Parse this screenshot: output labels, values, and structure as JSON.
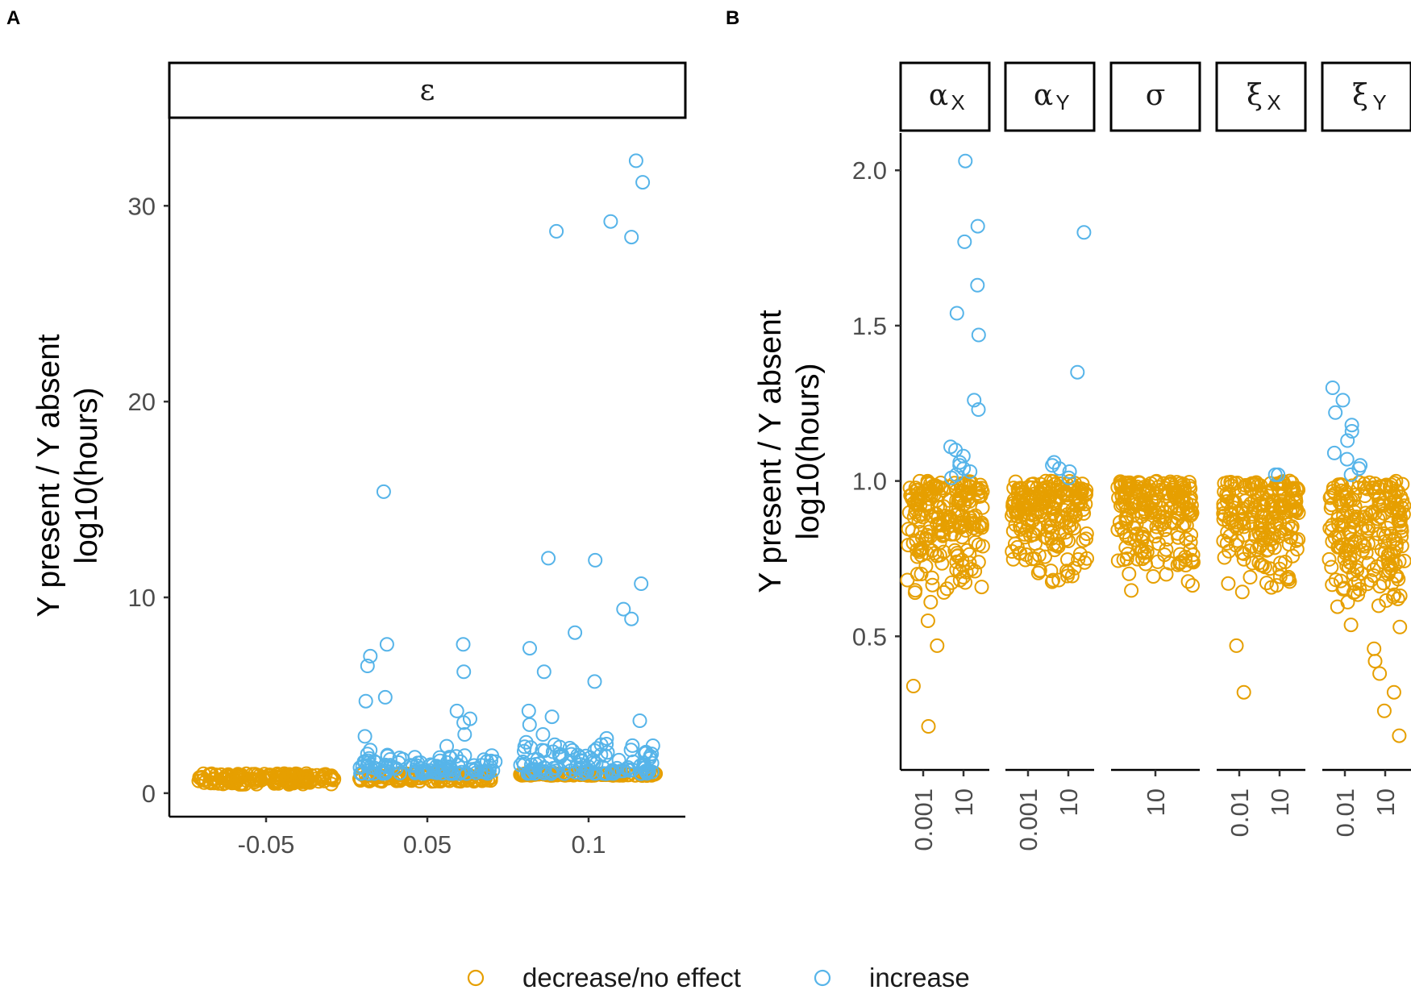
{
  "figure": {
    "panel_a_letter": "A",
    "panel_b_letter": "B"
  },
  "colors": {
    "decrease": "#E69F00",
    "increase": "#56B4E9"
  },
  "legend": {
    "decrease_label": "decrease/no effect",
    "increase_label": "increase"
  },
  "chart_data": [
    {
      "type": "scatter",
      "panel": "A",
      "facet": "ε",
      "ylabel_line1": "Y present / Y absent",
      "ylabel_line2": "log10(hours)",
      "xlabel": "",
      "ylim": [
        -1.2,
        34.5
      ],
      "yticks": [
        0,
        10,
        20,
        30
      ],
      "categories": [
        "-0.05",
        "0.05",
        "0.1"
      ],
      "series": [
        {
          "name": "increase",
          "points": [
            [
              "0.1",
              32.3
            ],
            [
              "0.1",
              31.2
            ],
            [
              "0.1",
              29.2
            ],
            [
              "0.1",
              28.7
            ],
            [
              "0.1",
              28.4
            ],
            [
              "0.05",
              15.4
            ],
            [
              "0.1",
              12.0
            ],
            [
              "0.1",
              11.9
            ],
            [
              "0.1",
              10.7
            ],
            [
              "0.1",
              9.4
            ],
            [
              "0.1",
              8.9
            ],
            [
              "0.1",
              8.2
            ],
            [
              "0.05",
              7.6
            ],
            [
              "0.05",
              7.6
            ],
            [
              "0.1",
              7.4
            ],
            [
              "0.05",
              7.0
            ],
            [
              "0.05",
              6.5
            ],
            [
              "0.05",
              6.2
            ],
            [
              "0.1",
              6.2
            ],
            [
              "0.1",
              5.7
            ],
            [
              "0.05",
              4.9
            ],
            [
              "0.05",
              4.7
            ],
            [
              "0.1",
              4.2
            ],
            [
              "0.05",
              4.2
            ],
            [
              "0.05",
              3.8
            ],
            [
              "0.1",
              3.9
            ],
            [
              "0.1",
              3.7
            ],
            [
              "0.05",
              3.6
            ],
            [
              "0.1",
              3.5
            ],
            [
              "0.05",
              3.0
            ],
            [
              "0.1",
              3.0
            ],
            [
              "0.05",
              2.9
            ],
            [
              "0.1",
              2.8
            ],
            [
              "0.1",
              2.6
            ],
            [
              "0.05",
              2.4
            ],
            [
              "0.1",
              2.3
            ],
            [
              "0.05",
              2.2
            ],
            [
              "0.1",
              2.1
            ],
            [
              "0.05",
              2.0
            ],
            [
              "0.1",
              1.9
            ]
          ],
          "baseline_band": {
            "0.05": [
              1.0,
              2.0
            ],
            "0.1": [
              1.0,
              2.6
            ]
          }
        },
        {
          "name": "decrease/no effect",
          "baseline_band": {
            "-0.05": [
              0.45,
              1.0
            ],
            "0.05": [
              0.6,
              1.0
            ],
            "0.1": [
              0.9,
              1.0
            ]
          }
        }
      ]
    },
    {
      "type": "scatter",
      "panel": "B",
      "ylabel_line1": "Y present / Y absent",
      "ylabel_line2": "log10(hours)",
      "xlabel": "",
      "ylim": [
        0.07,
        2.12
      ],
      "yticks": [
        "0.5",
        "1.0",
        "1.5",
        "2.0"
      ],
      "facets": [
        {
          "name": "α",
          "sub": "X",
          "ticks": [
            "0.001",
            "10"
          ],
          "increase_points": [
            [
              "10",
              2.03
            ],
            [
              "10",
              1.82
            ],
            [
              "10",
              1.77
            ],
            [
              "10",
              1.63
            ],
            [
              "10",
              1.54
            ],
            [
              "10",
              1.47
            ],
            [
              "10",
              1.26
            ],
            [
              "10",
              1.23
            ],
            [
              "10",
              1.11
            ],
            [
              "10",
              1.1
            ],
            [
              "10",
              1.08
            ],
            [
              "10",
              1.06
            ],
            [
              "10",
              1.05
            ],
            [
              "10",
              1.04
            ],
            [
              "10",
              1.03
            ],
            [
              "10",
              1.02
            ],
            [
              "10",
              1.01
            ]
          ],
          "decrease_outliers": [
            [
              "0.001",
              0.55
            ],
            [
              "0.001",
              0.47
            ],
            [
              "0.001",
              0.34
            ],
            [
              "0.001",
              0.21
            ],
            [
              "0.001",
              0.61
            ]
          ],
          "decrease_band": [
            0.62,
            1.0
          ]
        },
        {
          "name": "α",
          "sub": "Y",
          "ticks": [
            "0.001",
            "10"
          ],
          "increase_points": [
            [
              "10",
              1.8
            ],
            [
              "10",
              1.35
            ],
            [
              "10",
              1.06
            ],
            [
              "10",
              1.05
            ],
            [
              "10",
              1.04
            ],
            [
              "10",
              1.03
            ],
            [
              "10",
              1.01
            ]
          ],
          "decrease_outliers": [],
          "decrease_band": [
            0.62,
            1.0
          ]
        },
        {
          "name": "σ",
          "sub": "",
          "ticks": [
            "10"
          ],
          "increase_points": [],
          "decrease_outliers": [],
          "decrease_band": [
            0.62,
            1.0
          ]
        },
        {
          "name": "ξ",
          "sub": "X",
          "ticks": [
            "0.01",
            "10"
          ],
          "increase_points": [
            [
              "10",
              1.02
            ],
            [
              "10",
              1.02
            ]
          ],
          "decrease_outliers": [
            [
              "0.01",
              0.47
            ],
            [
              "0.01",
              0.32
            ]
          ],
          "decrease_band": [
            0.6,
            1.0
          ]
        },
        {
          "name": "ξ",
          "sub": "Y",
          "ticks": [
            "0.01",
            "10"
          ],
          "increase_points": [
            [
              "0.01",
              1.3
            ],
            [
              "0.01",
              1.26
            ],
            [
              "0.01",
              1.22
            ],
            [
              "0.01",
              1.18
            ],
            [
              "0.01",
              1.16
            ],
            [
              "0.01",
              1.13
            ],
            [
              "0.01",
              1.09
            ],
            [
              "0.01",
              1.07
            ],
            [
              "0.01",
              1.05
            ],
            [
              "0.01",
              1.04
            ],
            [
              "0.01",
              1.02
            ]
          ],
          "decrease_outliers": [
            [
              "10",
              0.46
            ],
            [
              "10",
              0.42
            ],
            [
              "10",
              0.38
            ],
            [
              "10",
              0.32
            ],
            [
              "10",
              0.26
            ],
            [
              "10",
              0.18
            ]
          ],
          "decrease_band": [
            0.5,
            1.0
          ]
        }
      ]
    }
  ]
}
